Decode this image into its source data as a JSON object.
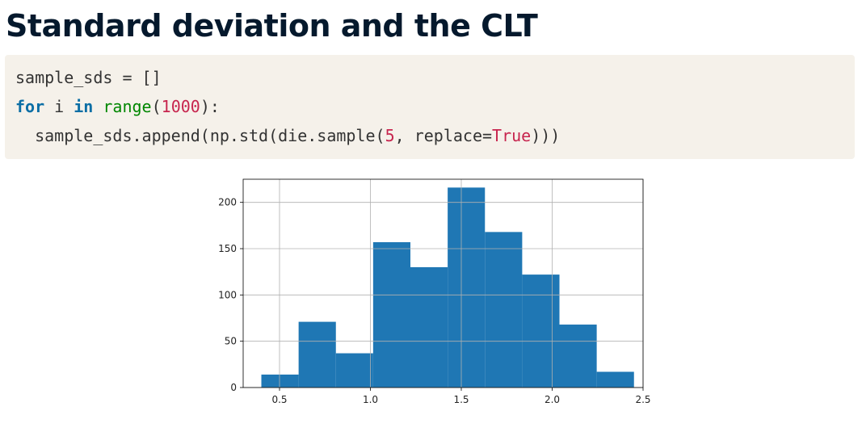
{
  "title": "Standard deviation and the CLT",
  "code": {
    "line1": {
      "text": "sample_sds = []"
    },
    "line2": {
      "kw_for": "for",
      "var": " i ",
      "kw_in": "in",
      "space": " ",
      "fn_range": "range",
      "open": "(",
      "num": "1000",
      "close": "):"
    },
    "line3": {
      "pre": "  sample_sds.append(np.std(die.sample(",
      "num": "5",
      "mid": ", replace=",
      "const": "True",
      "post": ")))"
    }
  },
  "colors": {
    "bar": "#1f77b4",
    "grid": "#b0b0b0",
    "axis": "#000000",
    "title": "#05192d",
    "code_bg": "#f5f1ea"
  },
  "chart_data": {
    "type": "bar",
    "subtype": "histogram",
    "title": "",
    "xlabel": "",
    "ylabel": "",
    "grid": true,
    "xlim": [
      0.3,
      2.5
    ],
    "ylim": [
      0,
      225
    ],
    "xticks": [
      0.5,
      1.0,
      1.5,
      2.0,
      2.5
    ],
    "xtick_labels": [
      "0.5",
      "1.0",
      "1.5",
      "2.0",
      "2.5"
    ],
    "yticks": [
      0,
      50,
      100,
      150,
      200
    ],
    "ytick_labels": [
      "0",
      "50",
      "100",
      "150",
      "200"
    ],
    "bin_edges": [
      0.4,
      0.605,
      0.81,
      1.015,
      1.22,
      1.425,
      1.63,
      1.835,
      2.04,
      2.245,
      2.45
    ],
    "counts": [
      14,
      71,
      37,
      157,
      130,
      216,
      168,
      122,
      68,
      17
    ]
  }
}
